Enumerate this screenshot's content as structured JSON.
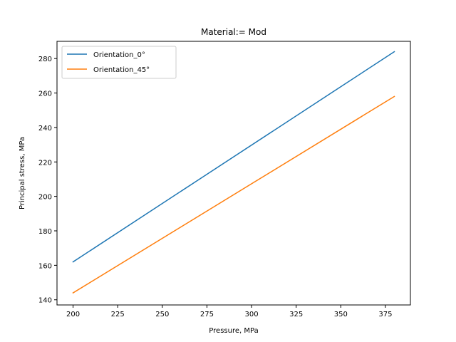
{
  "chart_data": {
    "type": "line",
    "title": "Material:=  Mod",
    "xlabel": "Pressure, MPa",
    "ylabel": "Principal stress, MPa",
    "xlim": [
      191,
      389
    ],
    "ylim": [
      137,
      290
    ],
    "xticks": [
      200,
      225,
      250,
      275,
      300,
      325,
      350,
      375
    ],
    "yticks": [
      140,
      160,
      180,
      200,
      220,
      240,
      260,
      280
    ],
    "grid": false,
    "legend_position": "top-left",
    "series": [
      {
        "name": "Orientation_0°",
        "color": "#1f77b4",
        "x": [
          200,
          380
        ],
        "y": [
          162,
          284
        ]
      },
      {
        "name": "Orientation_45°",
        "color": "#ff7f0e",
        "x": [
          200,
          380
        ],
        "y": [
          144,
          258
        ]
      }
    ]
  }
}
